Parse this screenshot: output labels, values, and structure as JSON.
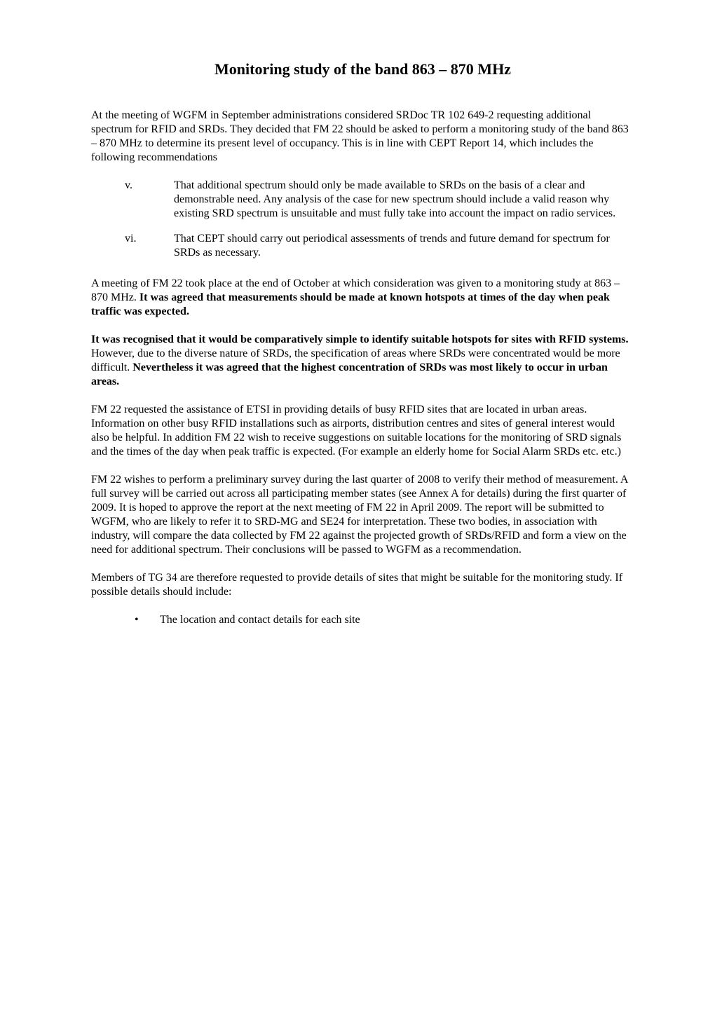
{
  "title": "Monitoring study of the band 863 – 870 MHz",
  "para1": "At the meeting of WGFM in September administrations considered SRDoc TR 102 649-2 requesting additional spectrum for RFID and SRDs. They decided that FM 22 should be asked to perform a monitoring study of the band 863 – 870 MHz to determine its present level of occupancy. This is in line with CEPT Report 14, which includes the following recommendations",
  "roman": {
    "v_num": "v.",
    "v_text": "That additional spectrum should only be made available to SRDs on the basis of a clear and demonstrable need. Any analysis of the case for new spectrum should include a valid reason why existing SRD spectrum is unsuitable and must fully take into account the impact on radio services.",
    "vi_num": "vi.",
    "vi_text": "That CEPT should carry out periodical assessments of trends and future demand for spectrum for SRDs as necessary."
  },
  "para2": {
    "normal": "A meeting of FM 22 took place at the end of October at which consideration was given to a monitoring study at 863 – 870 MHz. ",
    "bold": "It was agreed that measurements should be made at known hotspots at times of the day when peak traffic was expected."
  },
  "para3": {
    "bold1": "It was recognised that it would be comparatively simple to identify suitable hotspots for sites with RFID systems.",
    "normal": " However, due to the diverse nature of SRDs, the specification of areas where SRDs were concentrated would be more difficult. ",
    "bold2": "Nevertheless it was agreed that the highest concentration of SRDs was most likely to occur in urban areas."
  },
  "para4": "FM 22 requested the assistance of ETSI in providing details of busy RFID sites that are located in urban areas. Information on other busy RFID installations such as airports, distribution centres and sites of general interest would also be helpful. In addition FM 22 wish to receive suggestions on suitable locations for the monitoring of SRD signals and the times of the day when peak traffic is expected. (For example an elderly home for Social Alarm SRDs etc. etc.)",
  "para5": "FM 22 wishes to perform a preliminary survey during the last quarter of 2008 to verify their method of measurement. A full survey will be carried out across all participating member states (see Annex A for details) during the first quarter of 2009. It is hoped to approve the report at the next meeting of FM 22 in April 2009. The report will be submitted to WGFM, who are likely to refer it to SRD-MG and SE24 for interpretation. These two bodies, in association with industry, will compare the data collected by FM 22 against the projected growth of SRDs/RFID and form a view on the need for additional spectrum. Their conclusions will be passed to WGFM as a recommendation.",
  "para6": "Members of TG 34 are therefore requested to provide details of sites that might be suitable for the monitoring study. If possible details should include:",
  "bullet1": "The location and contact details for each site",
  "bullet_mark": "•"
}
